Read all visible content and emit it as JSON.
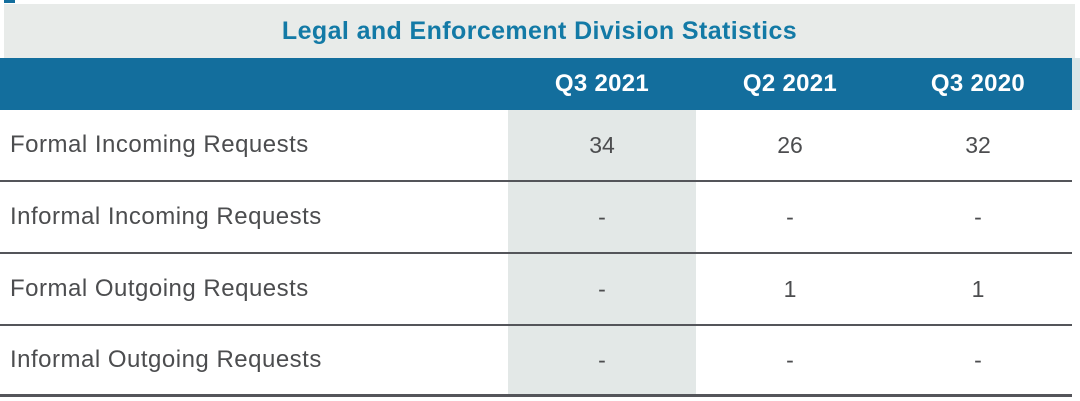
{
  "table": {
    "title": "Legal and Enforcement Division Statistics",
    "columns": [
      "Q3 2021",
      "Q2 2021",
      "Q3 2020"
    ],
    "highlighted_column": "Q3 2021",
    "rows": [
      {
        "label": "Formal Incoming Requests",
        "values": [
          "34",
          "26",
          "32"
        ]
      },
      {
        "label": "Informal Incoming Requests",
        "values": [
          "-",
          "-",
          "-"
        ]
      },
      {
        "label": "Formal Outgoing Requests",
        "values": [
          "-",
          "1",
          "1"
        ]
      },
      {
        "label": "Informal Outgoing Requests",
        "values": [
          "-",
          "-",
          "-"
        ]
      }
    ]
  },
  "colors": {
    "header_bg": "#136e9d",
    "header_text": "#ffffff",
    "title_text": "#137aa6",
    "title_bg": "#e8ebe9",
    "highlight_col_bg": "#e3e8e7",
    "body_text": "#4c4d4f",
    "divider": "#54555a"
  }
}
